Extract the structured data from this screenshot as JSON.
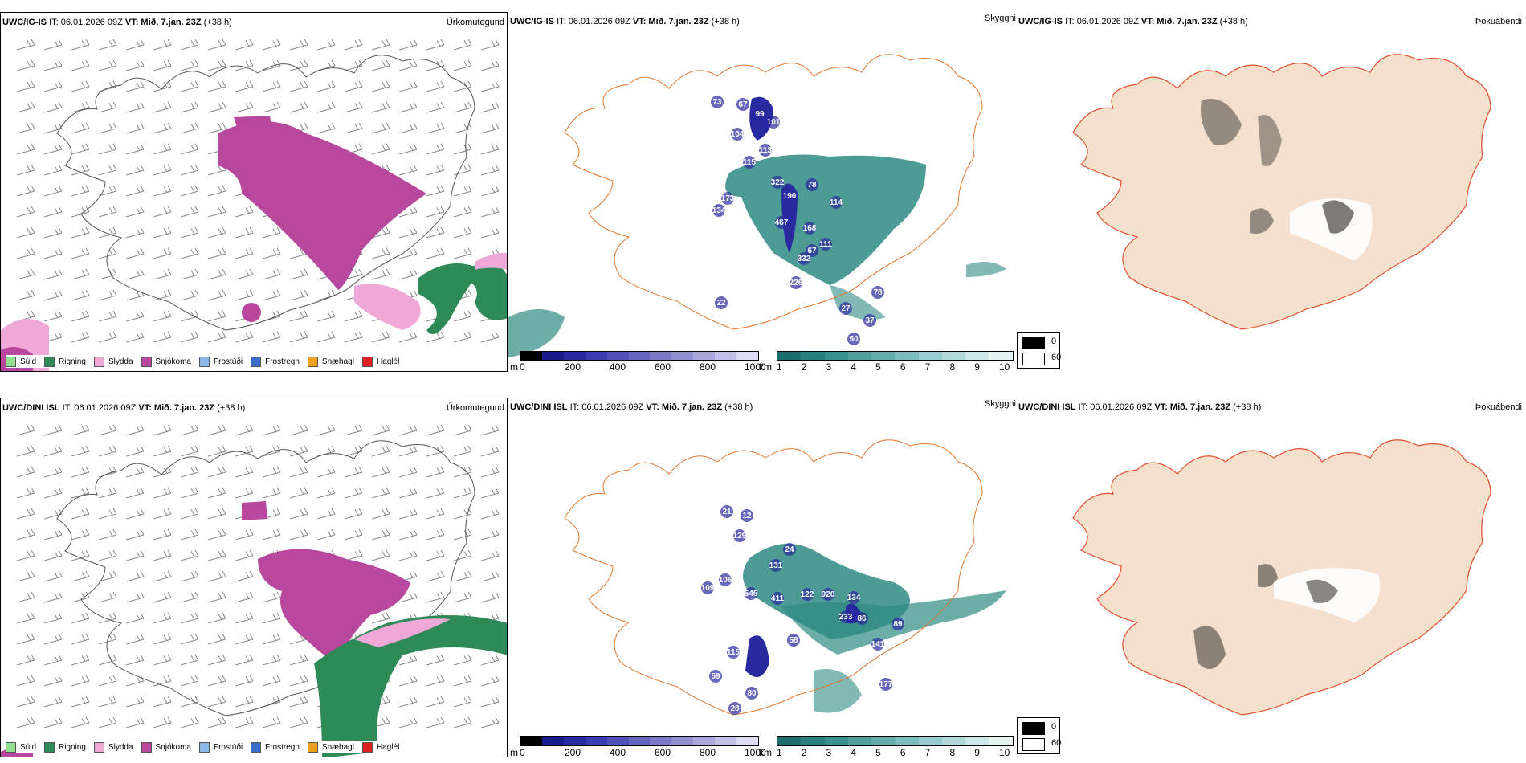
{
  "rows": [
    {
      "model": "UWC/IG-IS",
      "it_label": "IT: 06.01.2026 09Z",
      "vt_label": "VT: Mið. 7.jan. 23Z",
      "lead": "(+38 h)"
    },
    {
      "model": "UWC/DINI ISL",
      "it_label": "IT: 06.01.2026 09Z",
      "vt_label": "VT: Mið. 7.jan. 23Z",
      "lead": "(+38 h)"
    }
  ],
  "panels": {
    "precip_type": {
      "title": "Úrkomutegund"
    },
    "cloud": {
      "title": "Skyggni"
    },
    "fog": {
      "title": "Þokuábendi"
    }
  },
  "precip_legend": [
    {
      "label": "Súld",
      "color": "#8fe08f"
    },
    {
      "label": "Rigning",
      "color": "#2e8b57"
    },
    {
      "label": "Slydda",
      "color": "#f0a8d8"
    },
    {
      "label": "Snjókoma",
      "color": "#b8489e"
    },
    {
      "label": "Frostúði",
      "color": "#8ab8e8"
    },
    {
      "label": "Frostregn",
      "color": "#3a6ec8"
    },
    {
      "label": "Snæhagl",
      "color": "#f0a020"
    },
    {
      "label": "Haglél",
      "color": "#e02020"
    }
  ],
  "cloud_base_scale": {
    "unit": "m",
    "ticks": [
      "0",
      "200",
      "400",
      "600",
      "800",
      "1000"
    ],
    "colors": [
      "#000000",
      "#1a1a8a",
      "#2a2aa0",
      "#3c3cb0",
      "#5050b8",
      "#6666c0",
      "#7a7ac8",
      "#9090d0",
      "#a8a8dc",
      "#c0c0e8",
      "#dcdcf2"
    ]
  },
  "visibility_scale": {
    "unit": "km",
    "ticks": [
      "1",
      "2",
      "3",
      "4",
      "5",
      "6",
      "7",
      "8",
      "9",
      "10"
    ],
    "colors": [
      "#1d6f6f",
      "#2a7f7f",
      "#3a8f8f",
      "#4e9e9e",
      "#63adad",
      "#7bbdbd",
      "#95cccc",
      "#b0dada",
      "#cce8e8",
      "#e6f4f4"
    ]
  },
  "fog_scale": {
    "min": "0",
    "max": "60",
    "min_color": "#000000",
    "max_color": "#ffffff"
  },
  "cloud_labels": [
    [
      "73",
      "67",
      "99",
      "101",
      "322",
      "190",
      "78",
      "114",
      "173",
      "134",
      "467",
      "168",
      "111",
      "67",
      "332",
      "226",
      "27",
      "78",
      "37",
      "50",
      "22",
      "115",
      "113",
      "104"
    ],
    [
      "21",
      "12",
      "129",
      "109",
      "106",
      "545",
      "411",
      "122",
      "920",
      "134",
      "233",
      "86",
      "89",
      "58",
      "141",
      "115",
      "59",
      "28",
      "177",
      "80",
      "131",
      "24"
    ]
  ],
  "colors": {
    "land": "#f4e0cc",
    "road": "#e07830",
    "road_fog": "#e05030",
    "river": "#8090e8",
    "snow": "#b8489e",
    "sleet": "#f0a8d8",
    "rain": "#2e8b57",
    "cloud_teal": "#2e8a82",
    "cloud_blue": "#2a2aa0"
  }
}
